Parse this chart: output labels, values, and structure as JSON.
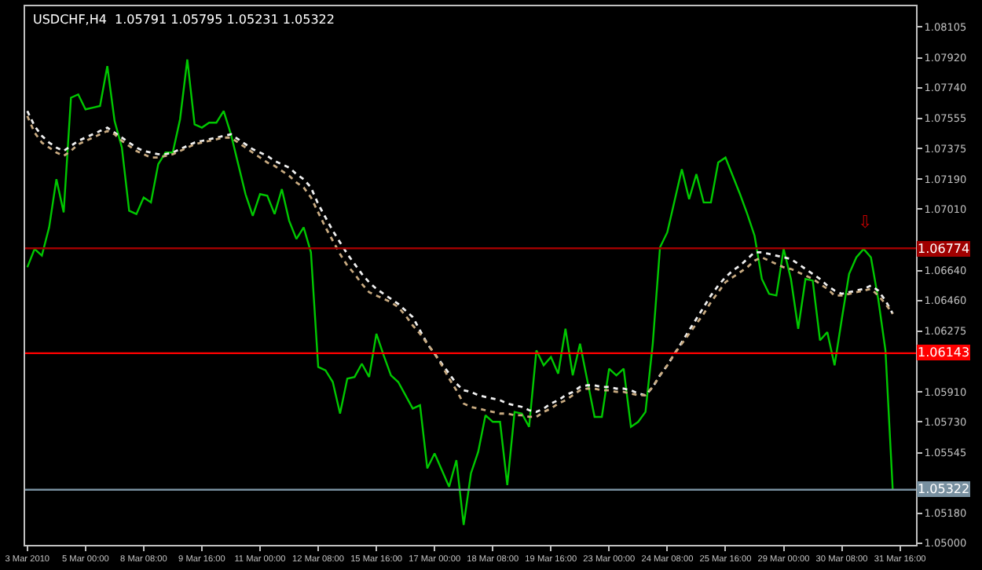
{
  "chart_data": {
    "type": "line",
    "title": "USDCHF,H4  1.05791 1.05795 1.05231 1.05322",
    "categories": [
      "3 Mar 2010",
      null,
      null,
      null,
      null,
      null,
      null,
      null,
      "5 Mar 00:00",
      null,
      null,
      null,
      null,
      null,
      null,
      null,
      "8 Mar 08:00",
      null,
      null,
      null,
      null,
      null,
      null,
      null,
      "9 Mar 16:00",
      null,
      null,
      null,
      null,
      null,
      null,
      null,
      "11 Mar 00:00",
      null,
      null,
      null,
      null,
      null,
      null,
      null,
      "12 Mar 08:00",
      null,
      null,
      null,
      null,
      null,
      null,
      null,
      "15 Mar 16:00",
      null,
      null,
      null,
      null,
      null,
      null,
      null,
      "17 Mar 00:00",
      null,
      null,
      null,
      null,
      null,
      null,
      null,
      "18 Mar 08:00",
      null,
      null,
      null,
      null,
      null,
      null,
      null,
      "19 Mar 16:00",
      null,
      null,
      null,
      null,
      null,
      null,
      null,
      "23 Mar 00:00",
      null,
      null,
      null,
      null,
      null,
      null,
      null,
      "24 Mar 08:00",
      null,
      null,
      null,
      null,
      null,
      null,
      null,
      "25 Mar 16:00",
      null,
      null,
      null,
      null,
      null,
      null,
      null,
      "29 Mar 00:00",
      null,
      null,
      null,
      null,
      null,
      null,
      null,
      "30 Mar 08:00",
      null,
      null,
      null,
      null,
      null,
      null,
      null,
      "31 Mar 16:00"
    ],
    "series": [
      {
        "color": "#00c800",
        "line_style": "solid",
        "values": [
          1.0666,
          1.0677,
          1.0673,
          1.069,
          1.0719,
          1.0699,
          1.0768,
          1.077,
          1.0761,
          1.0762,
          1.0763,
          1.0787,
          1.0754,
          1.0738,
          1.07,
          1.0698,
          1.0708,
          1.0705,
          1.0728,
          1.0735,
          1.0735,
          1.0755,
          1.0791,
          1.0752,
          1.075,
          1.0753,
          1.0753,
          1.076,
          1.0746,
          1.0728,
          1.071,
          1.0697,
          1.071,
          1.0709,
          1.0698,
          1.0713,
          1.0694,
          1.0683,
          1.069,
          1.0675,
          1.0606,
          1.0604,
          1.0597,
          1.0578,
          1.0599,
          1.06,
          1.0608,
          1.06,
          1.0626,
          1.0613,
          1.0601,
          1.0597,
          1.0589,
          1.0581,
          1.0583,
          1.0545,
          1.0554,
          1.0544,
          1.0534,
          1.055,
          1.0511,
          1.0542,
          1.0555,
          1.0577,
          1.0573,
          1.0573,
          1.0535,
          1.0579,
          1.0578,
          1.057,
          1.0616,
          1.0607,
          1.0612,
          1.0602,
          1.0629,
          1.0601,
          1.062,
          1.0598,
          1.0576,
          1.0576,
          1.0605,
          1.0601,
          1.0605,
          1.057,
          1.0573,
          1.0579,
          1.062,
          1.0678,
          1.0687,
          1.0706,
          1.0725,
          1.0707,
          1.0722,
          1.0705,
          1.0705,
          1.0729,
          1.0732,
          1.0721,
          1.071,
          1.0698,
          1.0685,
          1.0659,
          1.065,
          1.0649,
          1.0677,
          1.0659,
          1.0629,
          1.0659,
          1.0658,
          1.0622,
          1.0627,
          1.0607,
          1.0635,
          1.0662,
          1.0672,
          1.0677,
          1.0672,
          1.0647,
          1.0616,
          1.0532,
          null
        ]
      },
      {
        "color": "#f0f0f0",
        "line_style": "dotted",
        "values": [
          1.076,
          1.0751,
          1.0745,
          1.0741,
          1.0738,
          1.0736,
          1.0739,
          1.0742,
          1.0744,
          1.0746,
          1.0748,
          1.075,
          1.0747,
          1.0744,
          1.0741,
          1.0738,
          1.0736,
          1.0735,
          1.0734,
          1.0734,
          1.0735,
          1.0737,
          1.0739,
          1.0741,
          1.0742,
          1.0743,
          1.0744,
          1.0745,
          1.0746,
          1.0743,
          1.074,
          1.0737,
          1.0735,
          1.0733,
          1.073,
          1.0728,
          1.0726,
          1.0722,
          1.0719,
          1.0714,
          1.0704,
          1.0696,
          1.0688,
          1.0681,
          1.0674,
          1.0668,
          1.0662,
          1.0657,
          1.0653,
          1.065,
          1.0647,
          1.0644,
          1.064,
          1.0636,
          1.0628,
          1.062,
          1.0614,
          1.0608,
          1.0602,
          1.0596,
          1.0592,
          1.0591,
          1.0589,
          1.0588,
          1.0587,
          1.0586,
          1.0584,
          1.0583,
          1.0582,
          1.058,
          1.0579,
          1.0581,
          1.0584,
          1.0586,
          1.0589,
          1.0591,
          1.0594,
          1.0595,
          1.0595,
          1.0594,
          1.0594,
          1.0593,
          1.0593,
          1.0592,
          1.059,
          1.0589,
          1.0594,
          1.0601,
          1.0607,
          1.0614,
          1.0621,
          1.0628,
          1.0635,
          1.0642,
          1.0649,
          1.0655,
          1.066,
          1.0664,
          1.0667,
          1.0671,
          1.0675,
          1.0675,
          1.0674,
          1.0673,
          1.0672,
          1.0671,
          1.0668,
          1.0665,
          1.0662,
          1.0659,
          1.0655,
          1.0652,
          1.065,
          1.0651,
          1.0652,
          1.0653,
          1.0655,
          1.0652,
          1.0646,
          1.0638,
          null
        ]
      },
      {
        "color": "#c8aa80",
        "line_style": "dotted",
        "values": [
          1.0757,
          1.0747,
          1.0741,
          1.0738,
          1.0735,
          1.0733,
          1.0736,
          1.074,
          1.0742,
          1.0744,
          1.0746,
          1.0748,
          1.0746,
          1.0742,
          1.0739,
          1.0736,
          1.0734,
          1.0732,
          1.0732,
          1.0733,
          1.0734,
          1.0736,
          1.0738,
          1.074,
          1.0741,
          1.0742,
          1.0743,
          1.0744,
          1.0744,
          1.0741,
          1.0738,
          1.0735,
          1.0732,
          1.0729,
          1.0727,
          1.0724,
          1.0721,
          1.0717,
          1.0714,
          1.0708,
          1.0699,
          1.069,
          1.0682,
          1.0674,
          1.0667,
          1.0662,
          1.0656,
          1.0651,
          1.0649,
          1.0647,
          1.0645,
          1.0642,
          1.0637,
          1.0631,
          1.0626,
          1.062,
          1.0614,
          1.0607,
          1.0599,
          1.0592,
          1.0584,
          1.0582,
          1.0581,
          1.058,
          1.0579,
          1.0578,
          1.0578,
          1.0577,
          1.0577,
          1.0576,
          1.0576,
          1.0579,
          1.0581,
          1.0584,
          1.0586,
          1.0589,
          1.0592,
          1.0593,
          1.0593,
          1.0592,
          1.0592,
          1.0591,
          1.0591,
          1.059,
          1.0589,
          1.0589,
          1.0594,
          1.0601,
          1.0607,
          1.0614,
          1.062,
          1.0626,
          1.0632,
          1.0638,
          1.0645,
          1.0651,
          1.0657,
          1.066,
          1.0663,
          1.0666,
          1.067,
          1.0672,
          1.067,
          1.0668,
          1.0666,
          1.0665,
          1.0663,
          1.0661,
          1.0659,
          1.0656,
          1.0653,
          1.0649,
          1.0649,
          1.065,
          1.0651,
          1.0652,
          1.0653,
          1.0649,
          1.0644,
          1.0638,
          null
        ]
      }
    ],
    "ylim": [
      1.0499,
      1.0823
    ],
    "yticks": [
      {
        "value": 1.08105,
        "label": "1.08105"
      },
      {
        "value": 1.0792,
        "label": "1.07920"
      },
      {
        "value": 1.0774,
        "label": "1.07740"
      },
      {
        "value": 1.07555,
        "label": "1.07555"
      },
      {
        "value": 1.07375,
        "label": "1.07375"
      },
      {
        "value": 1.0719,
        "label": "1.07190"
      },
      {
        "value": 1.0701,
        "label": "1.07010"
      },
      {
        "value": 1.0664,
        "label": "1.06640"
      },
      {
        "value": 1.0646,
        "label": "1.06460"
      },
      {
        "value": 1.06275,
        "label": "1.06275"
      },
      {
        "value": 1.0591,
        "label": "1.05910"
      },
      {
        "value": 1.0573,
        "label": "1.05730"
      },
      {
        "value": 1.05545,
        "label": "1.05545"
      },
      {
        "value": 1.0518,
        "label": "1.05180"
      },
      {
        "value": 1.05,
        "label": "1.05000"
      }
    ],
    "ref_lines": [
      {
        "axis": "y",
        "value": 1.06774,
        "label": "1.06774",
        "color": "#a00000"
      },
      {
        "axis": "y",
        "value": 1.06143,
        "label": "1.06143",
        "color": "#ff0000"
      },
      {
        "axis": "y",
        "value": 1.05322,
        "label": "1.05322",
        "color": "#7890a0"
      }
    ],
    "annotations": [
      "⇩"
    ],
    "grid": false,
    "legend": false,
    "marker": "none"
  }
}
